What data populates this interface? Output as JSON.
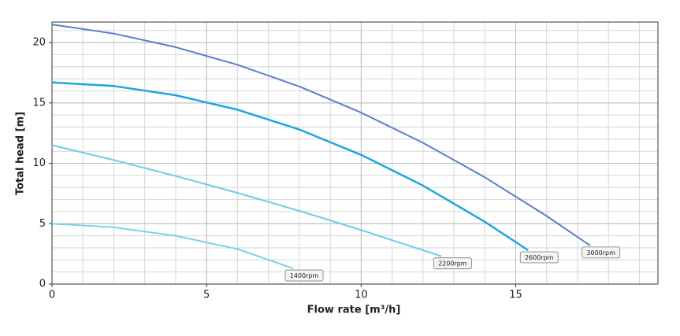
{
  "chart_data": {
    "type": "line",
    "xlabel": "Flow rate [m³/h]",
    "ylabel": "Total head [m]",
    "xlim": [
      0,
      19.6
    ],
    "ylim": [
      0,
      21.7
    ],
    "xticks": [
      0,
      5,
      10,
      15
    ],
    "yticks": [
      0,
      5,
      10,
      15,
      20
    ],
    "grid": true,
    "minor_grid": 1,
    "series": [
      {
        "name": "3000rpm",
        "color": "#5a7fc8",
        "x": [
          0,
          2,
          4,
          6,
          8,
          10,
          12,
          14,
          16,
          17.4
        ],
        "values": [
          21.5,
          20.74,
          19.62,
          18.16,
          16.36,
          14.2,
          11.7,
          8.84,
          5.64,
          3.2
        ]
      },
      {
        "name": "2600rpm",
        "color": "#1ea5e0",
        "x": [
          0,
          2,
          4,
          6,
          8,
          10,
          12,
          14,
          15.4
        ],
        "values": [
          16.7,
          16.4,
          15.64,
          14.44,
          12.8,
          10.7,
          8.16,
          5.16,
          2.8
        ]
      },
      {
        "name": "2200rpm",
        "color": "#72c9ea",
        "x": [
          0,
          2,
          4,
          6,
          8,
          10,
          12.6
        ],
        "values": [
          11.5,
          10.27,
          8.95,
          7.55,
          6.06,
          4.48,
          2.3
        ]
      },
      {
        "name": "1400rpm",
        "color": "#7fd0ee",
        "x": [
          0,
          2,
          4,
          6,
          7.8
        ],
        "values": [
          5,
          4.7,
          4.0,
          2.9,
          1.3
        ]
      }
    ]
  }
}
